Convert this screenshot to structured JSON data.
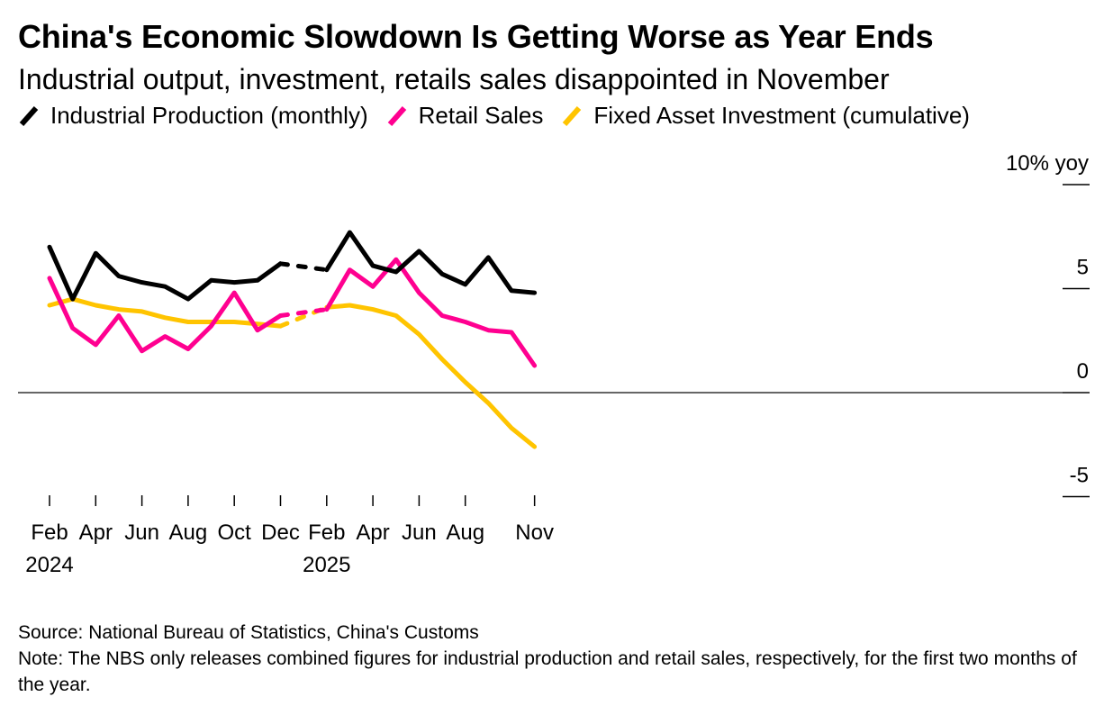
{
  "chart_data": {
    "type": "line",
    "title": "China's Economic Slowdown Is Getting Worse as Year Ends",
    "subtitle": "Industrial output, investment, retails sales disappointed in November",
    "ylabel": "% yoy",
    "ylim": [
      -5,
      10
    ],
    "yticks": [
      {
        "value": 10,
        "label": "10% yoy"
      },
      {
        "value": 5,
        "label": "5"
      },
      {
        "value": 0,
        "label": "0"
      },
      {
        "value": -5,
        "label": "-5"
      }
    ],
    "x": [
      "2024-02",
      "2024-03",
      "2024-04",
      "2024-05",
      "2024-06",
      "2024-07",
      "2024-08",
      "2024-09",
      "2024-10",
      "2024-11",
      "2024-12",
      "2025-02",
      "2025-03",
      "2025-04",
      "2025-05",
      "2025-06",
      "2025-07",
      "2025-08",
      "2025-09",
      "2025-10",
      "2025-11"
    ],
    "xticks": [
      {
        "month": "2024-02",
        "label": "Feb",
        "year": "2024"
      },
      {
        "month": "2024-04",
        "label": "Apr",
        "year": ""
      },
      {
        "month": "2024-06",
        "label": "Jun",
        "year": ""
      },
      {
        "month": "2024-08",
        "label": "Aug",
        "year": ""
      },
      {
        "month": "2024-10",
        "label": "Oct",
        "year": ""
      },
      {
        "month": "2024-12",
        "label": "Dec",
        "year": ""
      },
      {
        "month": "2025-02",
        "label": "Feb",
        "year": "2025"
      },
      {
        "month": "2025-04",
        "label": "Apr",
        "year": ""
      },
      {
        "month": "2025-06",
        "label": "Jun",
        "year": ""
      },
      {
        "month": "2025-08",
        "label": "Aug",
        "year": ""
      },
      {
        "month": "2025-11",
        "label": "Nov",
        "year": ""
      }
    ],
    "dashed_gap": [
      "2024-12",
      "2025-02"
    ],
    "series": [
      {
        "name": "Industrial Production (monthly)",
        "color": "#000000",
        "values": [
          7.0,
          4.5,
          6.7,
          5.6,
          5.3,
          5.1,
          4.5,
          5.4,
          5.3,
          5.4,
          6.2,
          5.9,
          7.7,
          6.1,
          5.8,
          6.8,
          5.7,
          5.2,
          6.5,
          4.9,
          4.8
        ]
      },
      {
        "name": "Retail Sales",
        "color": "#ff0090",
        "values": [
          5.5,
          3.1,
          2.3,
          3.7,
          2.0,
          2.7,
          2.1,
          3.2,
          4.8,
          3.0,
          3.7,
          4.0,
          5.9,
          5.1,
          6.4,
          4.8,
          3.7,
          3.4,
          3.0,
          2.9,
          1.3
        ]
      },
      {
        "name": "Fixed Asset Investment (cumulative)",
        "color": "#ffc400",
        "values": [
          4.2,
          4.5,
          4.2,
          4.0,
          3.9,
          3.6,
          3.4,
          3.4,
          3.4,
          3.3,
          3.2,
          4.1,
          4.2,
          4.0,
          3.7,
          2.8,
          1.6,
          0.5,
          -0.5,
          -1.7,
          -2.6
        ]
      }
    ]
  },
  "footer": {
    "source": "Source: National Bureau of Statistics, China's Customs",
    "note": "Note: The NBS only releases combined figures for industrial production and retail sales, respectively, for the first two months of the year."
  }
}
